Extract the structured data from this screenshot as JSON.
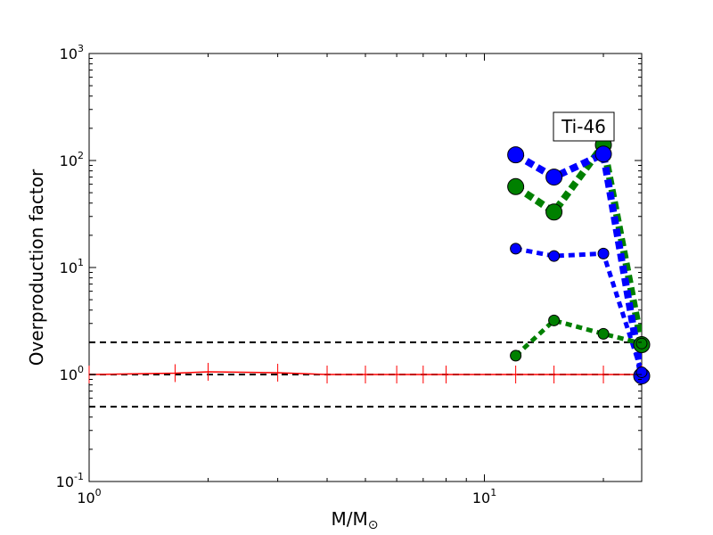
{
  "chart_data": {
    "type": "scatter",
    "xscale": "log",
    "yscale": "log",
    "xlim": [
      1,
      25
    ],
    "ylim": [
      0.1,
      1000
    ],
    "xlabel": "M/M",
    "xlabel_symbol": "⊙",
    "ylabel": "Overproduction factor",
    "annotation": "Ti-46",
    "grid": false,
    "x_ticks": [
      {
        "value": 1,
        "base": "10",
        "exp": "0"
      },
      {
        "value": 10,
        "base": "10",
        "exp": "1"
      }
    ],
    "y_ticks": [
      {
        "value": 0.1,
        "base": "10",
        "exp": "-1"
      },
      {
        "value": 1,
        "base": "10",
        "exp": "0"
      },
      {
        "value": 10,
        "base": "10",
        "exp": "1"
      },
      {
        "value": 100,
        "base": "10",
        "exp": "2"
      },
      {
        "value": 1000,
        "base": "10",
        "exp": "3"
      }
    ],
    "reference_lines": [
      0.5,
      1,
      2
    ],
    "series": [
      {
        "color": "#ff0000",
        "style": "solid-red-with-ticks",
        "x": [
          1.0,
          1.65,
          2.0,
          3.0,
          4.0,
          5.0,
          6.0,
          7.0,
          8.0,
          12.0,
          15.0,
          20.0,
          25.0
        ],
        "y": [
          1.0,
          1.03,
          1.06,
          1.04,
          1.0,
          1.0,
          1.0,
          1.0,
          1.0,
          1.0,
          1.0,
          1.0,
          1.0
        ]
      },
      {
        "color": "#008000",
        "style": "dotted-large",
        "x": [
          12,
          15,
          20,
          25
        ],
        "y": [
          57,
          33,
          140,
          1.9
        ]
      },
      {
        "color": "#0000ff",
        "style": "dotted-large",
        "x": [
          12,
          15,
          20,
          25
        ],
        "y": [
          113,
          70,
          115,
          0.97
        ]
      },
      {
        "color": "#0000ff",
        "style": "dotted-small",
        "x": [
          12,
          15,
          20,
          25
        ],
        "y": [
          15,
          12.8,
          13.5,
          1.05
        ]
      },
      {
        "color": "#008000",
        "style": "dotted-small",
        "x": [
          12,
          15,
          20,
          25
        ],
        "y": [
          1.5,
          3.2,
          2.4,
          1.95
        ]
      }
    ]
  }
}
